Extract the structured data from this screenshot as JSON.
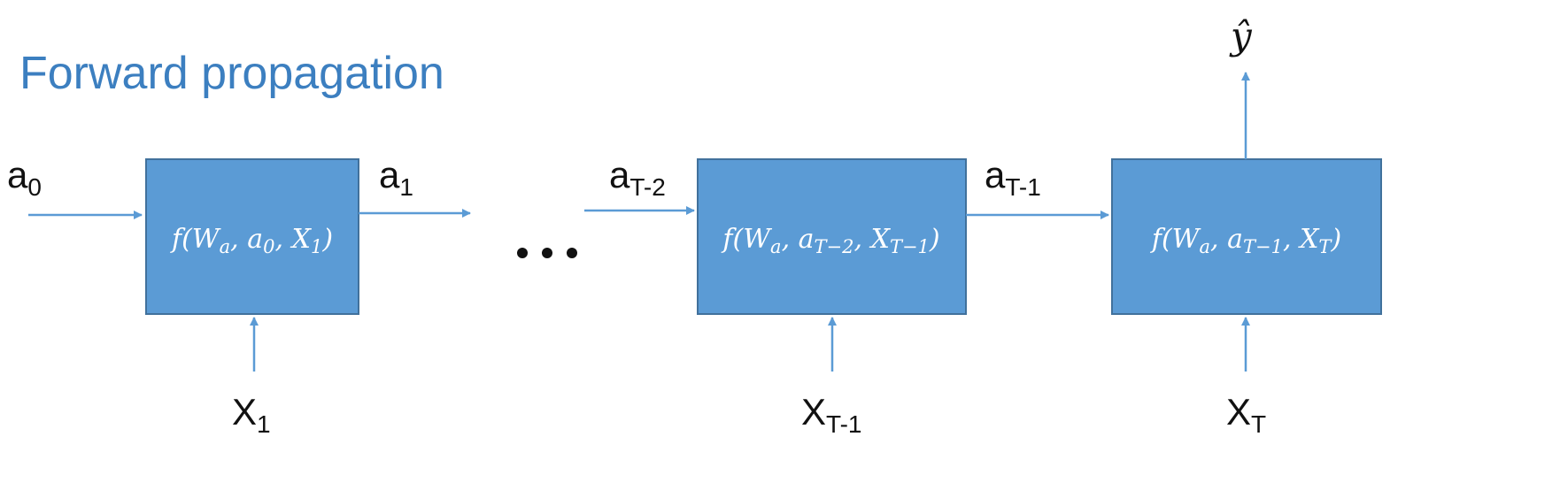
{
  "title": "Forward propagation",
  "ellipsis": "...",
  "colors": {
    "title": "#3c7fc0",
    "box": "#5b9bd5",
    "box_border": "#41719c",
    "arrow": "#5b9bd5"
  },
  "cells": [
    {
      "fn": {
        "f": "f",
        "open": "(",
        "W": "W",
        "W_sub": "a",
        "sep1": ", ",
        "a": "a",
        "a_sub": "0",
        "sep2": ", ",
        "X": "X",
        "X_sub": "1",
        "close": ")"
      }
    },
    {
      "fn": {
        "f": "f",
        "open": "(",
        "W": "W",
        "W_sub": "a",
        "sep1": ", ",
        "a": "a",
        "a_sub": "T−2",
        "sep2": ", ",
        "X": "X",
        "X_sub": "T−1",
        "close": ")"
      }
    },
    {
      "fn": {
        "f": "f",
        "open": "(",
        "W": "W",
        "W_sub": "a",
        "sep1": ", ",
        "a": "a",
        "a_sub": "T−1",
        "sep2": ", ",
        "X": "X",
        "X_sub": "T",
        "close": ")"
      }
    }
  ],
  "labels": {
    "a0": {
      "base": "a",
      "sub": "0"
    },
    "a1": {
      "base": "a",
      "sub": "1"
    },
    "aT2": {
      "base": "a",
      "sub": "T-2"
    },
    "aT1": {
      "base": "a",
      "sub": "T-1"
    },
    "x1": {
      "base": "X",
      "sub": "1"
    },
    "xT1": {
      "base": "X",
      "sub": "T-1"
    },
    "xT": {
      "base": "X",
      "sub": "T"
    },
    "yhat": "ŷ"
  }
}
